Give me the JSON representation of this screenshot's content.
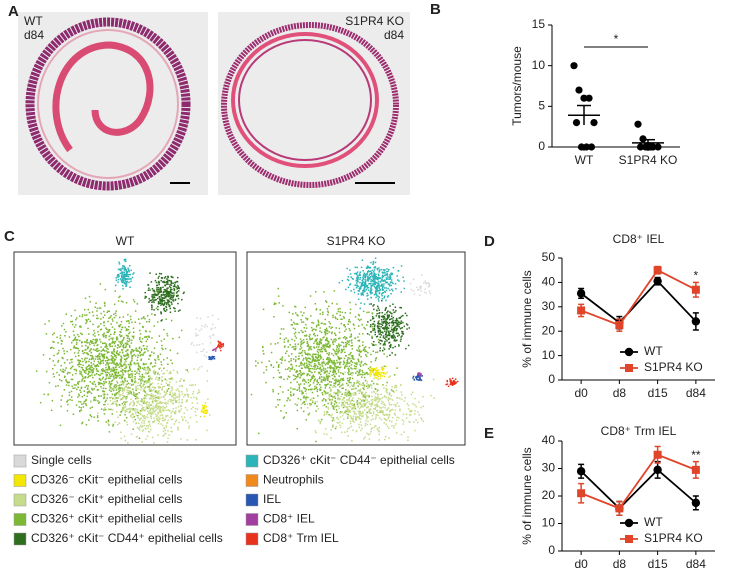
{
  "panel_labels": [
    "A",
    "B",
    "C",
    "D",
    "E"
  ],
  "histology": [
    {
      "label": "WT",
      "timepoint": "d84"
    },
    {
      "label": "S1PR4 KO",
      "timepoint": "d84"
    }
  ],
  "tsne": {
    "titles": [
      "WT",
      "S1PR4 KO"
    ],
    "legend": [
      {
        "name": "Single cells",
        "color": "#d9d9d9"
      },
      {
        "name": "CD326⁻ cKit⁻ epithelial cells",
        "color": "#f3e600"
      },
      {
        "name": "CD326⁻ cKit⁺ epithelial cells",
        "color": "#c6dc8c"
      },
      {
        "name": "CD326⁺ cKit⁺ epithelial cells",
        "color": "#7cb834"
      },
      {
        "name": "CD326⁺ cKit⁻ CD44⁺ epithelial cells",
        "color": "#2e6e1f"
      },
      {
        "name": "CD326⁺ cKit⁻ CD44⁻ epithelial cells",
        "color": "#2cb5b8"
      },
      {
        "name": "Neutrophils",
        "color": "#f0891d"
      },
      {
        "name": "IEL",
        "color": "#2757b2"
      },
      {
        "name": "CD8⁺ IEL",
        "color": "#a23ea0"
      },
      {
        "name": "CD8⁺ Trm IEL",
        "color": "#e8321c"
      }
    ]
  },
  "chart_data": [
    {
      "type": "bar",
      "y_label": "Tumors/mouse",
      "categories": [
        "WT",
        "S1PR4 KO"
      ],
      "values": [
        3.9,
        0.5
      ],
      "errors": [
        1.2,
        0.4
      ],
      "points": [
        [
          10,
          7,
          6,
          6,
          3,
          3,
          0,
          0,
          0
        ],
        [
          2.8,
          1,
          0,
          0,
          0,
          0,
          0,
          0
        ]
      ],
      "ylim": [
        0,
        15
      ],
      "yticks": [
        0,
        5,
        10,
        15
      ],
      "annotation": "*",
      "color": "#000000"
    },
    {
      "type": "line",
      "title": "CD8⁺ IEL",
      "y_label": "% of immune cells",
      "categories": [
        "d0",
        "d8",
        "d15",
        "d84"
      ],
      "series": [
        {
          "name": "WT",
          "color": "#000000",
          "marker": "circle",
          "values": [
            35.5,
            23.5,
            40.5,
            24
          ],
          "errors": [
            2,
            2.5,
            1.5,
            3.5
          ]
        },
        {
          "name": "S1PR4 KO",
          "color": "#e0452a",
          "marker": "square",
          "values": [
            28.5,
            22.5,
            45,
            37
          ],
          "errors": [
            2.5,
            2.5,
            1.5,
            3
          ]
        }
      ],
      "ylim": [
        0,
        50
      ],
      "yticks": [
        0,
        10,
        20,
        30,
        40,
        50
      ],
      "annotation": "*",
      "legend": "lower right"
    },
    {
      "type": "line",
      "title": "CD8⁺ Trm IEL",
      "y_label": "% of immune cells",
      "categories": [
        "d0",
        "d8",
        "d15",
        "d84"
      ],
      "series": [
        {
          "name": "WT",
          "color": "#000000",
          "marker": "circle",
          "values": [
            29,
            15.5,
            29.5,
            17.5
          ],
          "errors": [
            2.5,
            2.5,
            3,
            2.5
          ]
        },
        {
          "name": "S1PR4 KO",
          "color": "#e0452a",
          "marker": "square",
          "values": [
            21,
            15.5,
            35,
            29.5
          ],
          "errors": [
            3.5,
            2.5,
            3,
            3
          ]
        }
      ],
      "ylim": [
        0,
        40
      ],
      "yticks": [
        0,
        10,
        20,
        30,
        40
      ],
      "annotation": "**",
      "legend": "lower right"
    }
  ]
}
